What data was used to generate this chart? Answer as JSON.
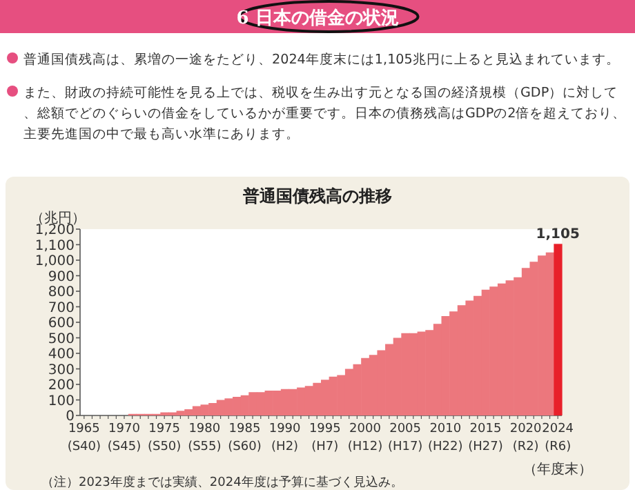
{
  "chart_data": {
    "type": "bar",
    "title": "6 日本の借金の状況",
    "subtitle": "普通国債残高の推移",
    "annotations": [
      "普通国債残高は、累増の一途をたどり、2024年度末には1,105兆円に上ると見込まれています。",
      "また、財政の持続可能性を見る上では、税収を生み出す元となる国の経済規模（GDP）に対して、総額でどのぐらいの借金をしているかが重要です。日本の債務残高はGDPの2倍を超えており、主要先進国の中で最も高い水準にあります。",
      "（注）2023年度までは実績、2024年度は予算に基づく見込み。"
    ],
    "ylabel": "（兆円）",
    "xlabel": "（年度末）",
    "categories": [
      "1965\n(S40)",
      null,
      null,
      null,
      null,
      "1970\n(S45)",
      null,
      null,
      null,
      null,
      "1975\n(S50)",
      null,
      null,
      null,
      null,
      "1980\n(S55)",
      null,
      null,
      null,
      null,
      "1985\n(S60)",
      null,
      null,
      null,
      null,
      "1990\n(H2)",
      null,
      null,
      null,
      null,
      "1995\n(H7)",
      null,
      null,
      null,
      null,
      "2000\n(H12)",
      null,
      null,
      null,
      null,
      "2005\n(H17)",
      null,
      null,
      null,
      null,
      "2010\n(H22)",
      null,
      null,
      null,
      null,
      "2015\n(H27)",
      null,
      null,
      null,
      null,
      "2020\n(R2)",
      null,
      null,
      null,
      "2024\n(R6)"
    ],
    "values": [
      0,
      0,
      0,
      0,
      0,
      0,
      10,
      10,
      10,
      10,
      20,
      20,
      30,
      40,
      60,
      70,
      80,
      100,
      110,
      120,
      130,
      150,
      150,
      160,
      160,
      170,
      170,
      180,
      190,
      210,
      230,
      250,
      260,
      300,
      330,
      370,
      390,
      420,
      460,
      500,
      530,
      530,
      540,
      550,
      590,
      640,
      670,
      710,
      740,
      770,
      810,
      830,
      850,
      870,
      890,
      950,
      990,
      1030,
      1050,
      1105
    ],
    "colors": [
      "#ec777d",
      "#ec777d",
      "#ec777d",
      "#ec777d",
      "#ec777d",
      "#ec777d",
      "#ec777d",
      "#ec777d",
      "#ec777d",
      "#ec777d",
      "#ec777d",
      "#ec777d",
      "#ec777d",
      "#ec777d",
      "#ec777d",
      "#ec777d",
      "#ec777d",
      "#ec777d",
      "#ec777d",
      "#ec777d",
      "#ec777d",
      "#ec777d",
      "#ec777d",
      "#ec777d",
      "#ec777d",
      "#ec777d",
      "#ec777d",
      "#ec777d",
      "#ec777d",
      "#ec777d",
      "#ec777d",
      "#ec777d",
      "#ec777d",
      "#ec777d",
      "#ec777d",
      "#ec777d",
      "#ec777d",
      "#ec777d",
      "#ec777d",
      "#ec777d",
      "#ec777d",
      "#ec777d",
      "#ec777d",
      "#ec777d",
      "#ec777d",
      "#ec777d",
      "#ec777d",
      "#ec777d",
      "#ec777d",
      "#ec777d",
      "#ec777d",
      "#ec777d",
      "#ec777d",
      "#ec777d",
      "#ec777d",
      "#ec777d",
      "#ec777d",
      "#ec777d",
      "#ec777d",
      "#e8202a"
    ],
    "value_labels": [
      null,
      null,
      null,
      null,
      null,
      null,
      null,
      null,
      null,
      null,
      null,
      null,
      null,
      null,
      null,
      null,
      null,
      null,
      null,
      null,
      null,
      null,
      null,
      null,
      null,
      null,
      null,
      null,
      null,
      null,
      null,
      null,
      null,
      null,
      null,
      null,
      null,
      null,
      null,
      null,
      null,
      null,
      null,
      null,
      null,
      null,
      null,
      null,
      null,
      null,
      null,
      null,
      null,
      null,
      null,
      null,
      null,
      null,
      null,
      "1,105"
    ],
    "ylim": [
      0,
      1200
    ],
    "yticks": [
      0,
      100,
      200,
      300,
      400,
      500,
      600,
      700,
      800,
      900,
      {
        "value": 1000,
        "label": "1,000"
      },
      {
        "value": 1100,
        "label": "1,100"
      },
      {
        "value": 1200,
        "label": "1,200"
      }
    ],
    "grid": false
  }
}
